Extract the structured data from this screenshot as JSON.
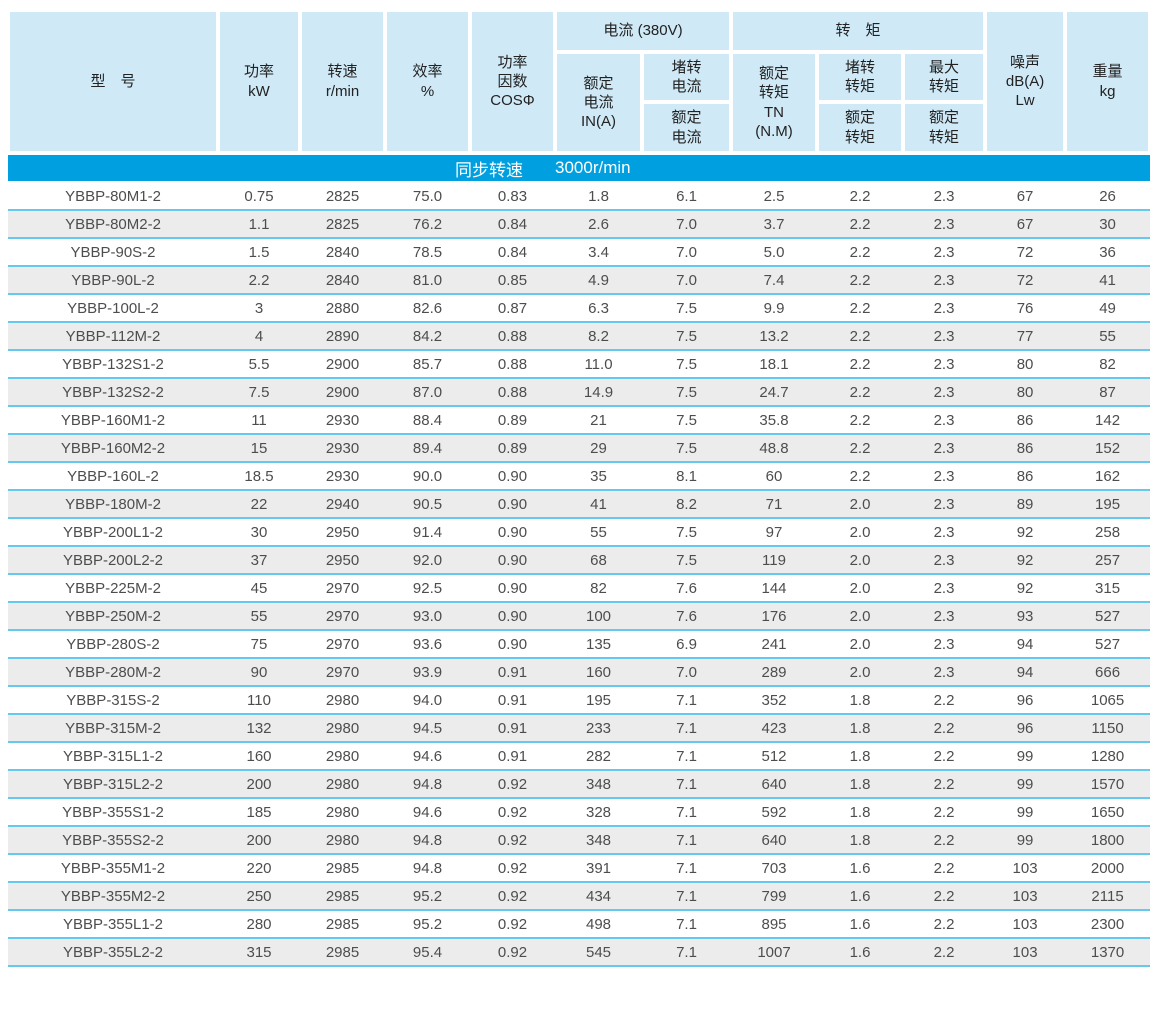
{
  "table": {
    "columns": {
      "model": "型　号",
      "power": "功率\nkW",
      "speed": "转速\nr/min",
      "efficiency": "效率\n%",
      "power_factor": "功率\n因数\nCOSΦ",
      "current_group": "电流 (380V)",
      "rated_current": "额定\n电流\nIN(A)",
      "locked_current_top": "堵转\n电流",
      "locked_current_bottom": "额定\n电流",
      "torque_group": "转　矩",
      "rated_torque": "额定\n转矩\nTN\n(N.M)",
      "locked_torque_top": "堵转\n转矩",
      "locked_torque_bottom": "额定\n转矩",
      "max_torque_top": "最大\n转矩",
      "max_torque_bottom": "额定\n转矩",
      "noise": "噪声\ndB(A)\nLw",
      "weight": "重量\nkg"
    },
    "band": {
      "label": "同步转速",
      "value": "3000r/min"
    },
    "rows": [
      [
        "YBBP-80M1-2",
        "0.75",
        "2825",
        "75.0",
        "0.83",
        "1.8",
        "6.1",
        "2.5",
        "2.2",
        "2.3",
        "67",
        "26"
      ],
      [
        "YBBP-80M2-2",
        "1.1",
        "2825",
        "76.2",
        "0.84",
        "2.6",
        "7.0",
        "3.7",
        "2.2",
        "2.3",
        "67",
        "30"
      ],
      [
        "YBBP-90S-2",
        "1.5",
        "2840",
        "78.5",
        "0.84",
        "3.4",
        "7.0",
        "5.0",
        "2.2",
        "2.3",
        "72",
        "36"
      ],
      [
        "YBBP-90L-2",
        "2.2",
        "2840",
        "81.0",
        "0.85",
        "4.9",
        "7.0",
        "7.4",
        "2.2",
        "2.3",
        "72",
        "41"
      ],
      [
        "YBBP-100L-2",
        "3",
        "2880",
        "82.6",
        "0.87",
        "6.3",
        "7.5",
        "9.9",
        "2.2",
        "2.3",
        "76",
        "49"
      ],
      [
        "YBBP-112M-2",
        "4",
        "2890",
        "84.2",
        "0.88",
        "8.2",
        "7.5",
        "13.2",
        "2.2",
        "2.3",
        "77",
        "55"
      ],
      [
        "YBBP-132S1-2",
        "5.5",
        "2900",
        "85.7",
        "0.88",
        "11.0",
        "7.5",
        "18.1",
        "2.2",
        "2.3",
        "80",
        "82"
      ],
      [
        "YBBP-132S2-2",
        "7.5",
        "2900",
        "87.0",
        "0.88",
        "14.9",
        "7.5",
        "24.7",
        "2.2",
        "2.3",
        "80",
        "87"
      ],
      [
        "YBBP-160M1-2",
        "11",
        "2930",
        "88.4",
        "0.89",
        "21",
        "7.5",
        "35.8",
        "2.2",
        "2.3",
        "86",
        "142"
      ],
      [
        "YBBP-160M2-2",
        "15",
        "2930",
        "89.4",
        "0.89",
        "29",
        "7.5",
        "48.8",
        "2.2",
        "2.3",
        "86",
        "152"
      ],
      [
        "YBBP-160L-2",
        "18.5",
        "2930",
        "90.0",
        "0.90",
        "35",
        "8.1",
        "60",
        "2.2",
        "2.3",
        "86",
        "162"
      ],
      [
        "YBBP-180M-2",
        "22",
        "2940",
        "90.5",
        "0.90",
        "41",
        "8.2",
        "71",
        "2.0",
        "2.3",
        "89",
        "195"
      ],
      [
        "YBBP-200L1-2",
        "30",
        "2950",
        "91.4",
        "0.90",
        "55",
        "7.5",
        "97",
        "2.0",
        "2.3",
        "92",
        "258"
      ],
      [
        "YBBP-200L2-2",
        "37",
        "2950",
        "92.0",
        "0.90",
        "68",
        "7.5",
        "119",
        "2.0",
        "2.3",
        "92",
        "257"
      ],
      [
        "YBBP-225M-2",
        "45",
        "2970",
        "92.5",
        "0.90",
        "82",
        "7.6",
        "144",
        "2.0",
        "2.3",
        "92",
        "315"
      ],
      [
        "YBBP-250M-2",
        "55",
        "2970",
        "93.0",
        "0.90",
        "100",
        "7.6",
        "176",
        "2.0",
        "2.3",
        "93",
        "527"
      ],
      [
        "YBBP-280S-2",
        "75",
        "2970",
        "93.6",
        "0.90",
        "135",
        "6.9",
        "241",
        "2.0",
        "2.3",
        "94",
        "527"
      ],
      [
        "YBBP-280M-2",
        "90",
        "2970",
        "93.9",
        "0.91",
        "160",
        "7.0",
        "289",
        "2.0",
        "2.3",
        "94",
        "666"
      ],
      [
        "YBBP-315S-2",
        "110",
        "2980",
        "94.0",
        "0.91",
        "195",
        "7.1",
        "352",
        "1.8",
        "2.2",
        "96",
        "1065"
      ],
      [
        "YBBP-315M-2",
        "132",
        "2980",
        "94.5",
        "0.91",
        "233",
        "7.1",
        "423",
        "1.8",
        "2.2",
        "96",
        "1150"
      ],
      [
        "YBBP-315L1-2",
        "160",
        "2980",
        "94.6",
        "0.91",
        "282",
        "7.1",
        "512",
        "1.8",
        "2.2",
        "99",
        "1280"
      ],
      [
        "YBBP-315L2-2",
        "200",
        "2980",
        "94.8",
        "0.92",
        "348",
        "7.1",
        "640",
        "1.8",
        "2.2",
        "99",
        "1570"
      ],
      [
        "YBBP-355S1-2",
        "185",
        "2980",
        "94.6",
        "0.92",
        "328",
        "7.1",
        "592",
        "1.8",
        "2.2",
        "99",
        "1650"
      ],
      [
        "YBBP-355S2-2",
        "200",
        "2980",
        "94.8",
        "0.92",
        "348",
        "7.1",
        "640",
        "1.8",
        "2.2",
        "99",
        "1800"
      ],
      [
        "YBBP-355M1-2",
        "220",
        "2985",
        "94.8",
        "0.92",
        "391",
        "7.1",
        "703",
        "1.6",
        "2.2",
        "103",
        "2000"
      ],
      [
        "YBBP-355M2-2",
        "250",
        "2985",
        "95.2",
        "0.92",
        "434",
        "7.1",
        "799",
        "1.6",
        "2.2",
        "103",
        "2115"
      ],
      [
        "YBBP-355L1-2",
        "280",
        "2985",
        "95.2",
        "0.92",
        "498",
        "7.1",
        "895",
        "1.6",
        "2.2",
        "103",
        "2300"
      ],
      [
        "YBBP-355L2-2",
        "315",
        "2985",
        "95.4",
        "0.92",
        "545",
        "7.1",
        "1007",
        "1.6",
        "2.2",
        "103",
        "1370"
      ]
    ]
  },
  "colors": {
    "header_bg": "#cfe9f6",
    "band_bg": "#00a0e0",
    "row_alt_bg": "#ececec",
    "divider": "#66c7ef"
  }
}
